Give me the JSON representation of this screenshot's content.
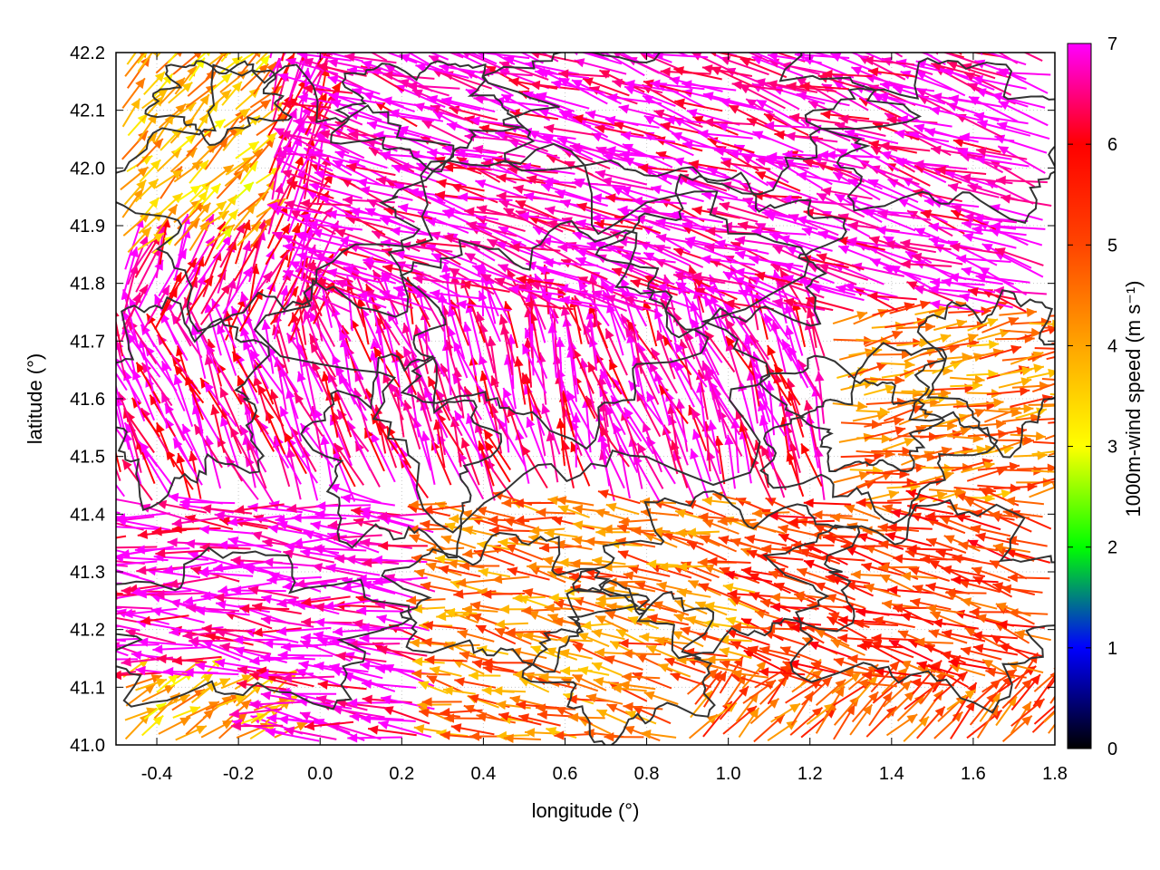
{
  "chart_data": {
    "type": "vector",
    "xlabel": "longitude (°)",
    "ylabel": "latitude (°)",
    "xlim": [
      -0.5,
      1.8
    ],
    "ylim": [
      41.0,
      42.2
    ],
    "xticks": [
      "-0.4",
      "-0.2",
      "0.0",
      "0.2",
      "0.4",
      "0.6",
      "0.8",
      "1.0",
      "1.2",
      "1.4",
      "1.6",
      "1.8"
    ],
    "yticks": [
      "41.0",
      "41.1",
      "41.2",
      "41.3",
      "41.4",
      "41.5",
      "41.6",
      "41.7",
      "41.8",
      "41.9",
      "42.0",
      "42.1",
      "42.2"
    ],
    "colorbar": {
      "label": "1000m-wind speed (m s⁻¹)",
      "range": [
        0,
        7
      ],
      "ticks": [
        "0",
        "1",
        "2",
        "3",
        "4",
        "5",
        "6",
        "7"
      ],
      "colors": [
        "#000000",
        "#0000ff",
        "#00ff00",
        "#ffff00",
        "#ffa500",
        "#ff4500",
        "#ff0000",
        "#ff00ff"
      ]
    },
    "grid": true,
    "contour_color": "#333333"
  }
}
